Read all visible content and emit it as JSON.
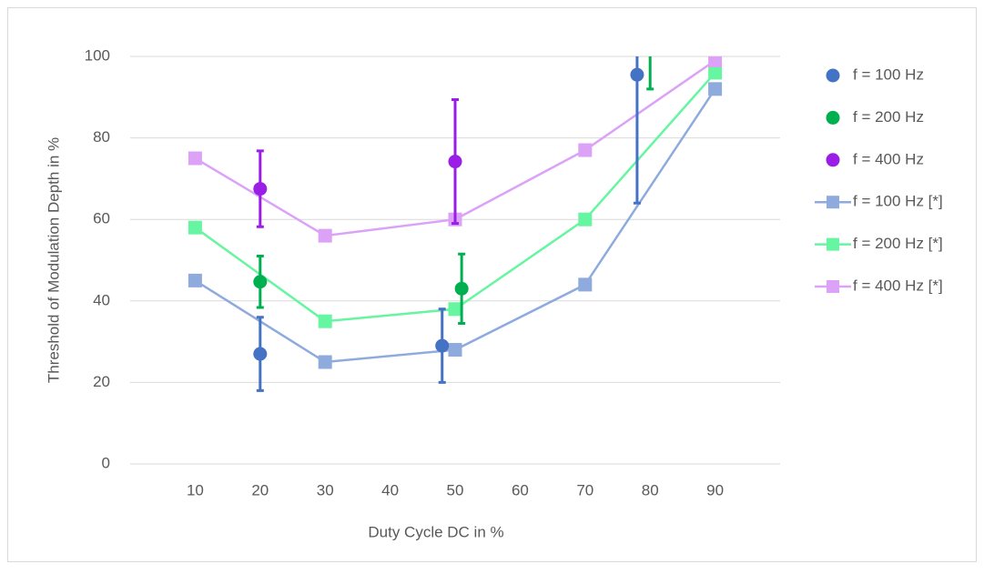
{
  "chart_data": {
    "type": "line",
    "xlabel": "Duty Cycle DC in %",
    "ylabel": "Threshold of Modulation Depth in %",
    "xlim": [
      0,
      100
    ],
    "xticks": [
      10,
      20,
      30,
      40,
      50,
      60,
      70,
      80,
      90
    ],
    "ylim": [
      0,
      100
    ],
    "yticks": [
      0,
      20,
      40,
      60,
      80,
      100
    ],
    "grid": true,
    "legend": "right",
    "series": [
      {
        "name": "f = 100 Hz",
        "color": "#4472c4",
        "style": "scatter",
        "x": [
          20,
          48,
          78
        ],
        "values": [
          27,
          29,
          95.5
        ],
        "errors": [
          9,
          9,
          31.5
        ]
      },
      {
        "name": "f = 200 Hz",
        "color": "#00b050",
        "style": "scatter",
        "x": [
          20,
          51,
          80
        ],
        "values": [
          44.7,
          43,
          106
        ],
        "errors": [
          6.3,
          8.5,
          14
        ]
      },
      {
        "name": "f = 400 Hz",
        "color": "#9b1ee6",
        "style": "scatter",
        "x": [
          20,
          50
        ],
        "values": [
          67.5,
          74.2
        ],
        "errors": [
          9.3,
          15.2
        ]
      },
      {
        "name": "f = 100 Hz [*]",
        "color": "#8faadc",
        "style": "line",
        "x": [
          10,
          30,
          50,
          70,
          90
        ],
        "values": [
          45,
          25,
          28,
          44,
          92
        ]
      },
      {
        "name": "f = 200 Hz [*]",
        "color": "#66f5a0",
        "style": "line",
        "x": [
          10,
          30,
          50,
          70,
          90
        ],
        "values": [
          58,
          35,
          38,
          60,
          96
        ]
      },
      {
        "name": "f = 400 Hz [*]",
        "color": "#dba2f7",
        "style": "line",
        "x": [
          10,
          30,
          50,
          70,
          90
        ],
        "values": [
          75,
          56,
          60,
          77,
          99
        ]
      }
    ]
  }
}
